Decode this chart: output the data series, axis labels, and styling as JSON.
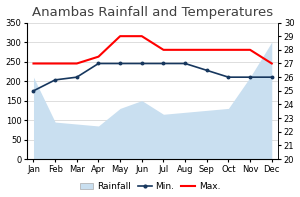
{
  "title": "Anambas Rainfall and Temperatures",
  "months": [
    "Jan",
    "Feb",
    "Mar",
    "Apr",
    "May",
    "Jun",
    "Jul",
    "Aug",
    "Sep",
    "Oct",
    "Nov",
    "Dec"
  ],
  "rainfall": [
    210,
    95,
    90,
    85,
    130,
    150,
    115,
    120,
    125,
    130,
    210,
    300
  ],
  "temp_min": [
    25.0,
    25.8,
    26.0,
    27.0,
    27.0,
    27.0,
    27.0,
    27.0,
    26.5,
    26.0,
    26.0,
    26.0
  ],
  "temp_max": [
    27.0,
    27.0,
    27.0,
    27.5,
    29.0,
    29.0,
    28.0,
    28.0,
    28.0,
    28.0,
    28.0,
    27.0
  ],
  "rainfall_color": "#c9dff0",
  "min_color": "#17375e",
  "max_color": "#ff0000",
  "ylim_left": [
    0,
    350
  ],
  "ylim_right": [
    20,
    30
  ],
  "yticks_left": [
    0,
    50,
    100,
    150,
    200,
    250,
    300,
    350
  ],
  "yticks_right": [
    20,
    21,
    22,
    23,
    24,
    25,
    26,
    27,
    28,
    29,
    30
  ],
  "title_fontsize": 9.5,
  "tick_fontsize": 6,
  "legend_fontsize": 6.5,
  "grid_color": "#d0d0d0",
  "background_color": "#ffffff"
}
